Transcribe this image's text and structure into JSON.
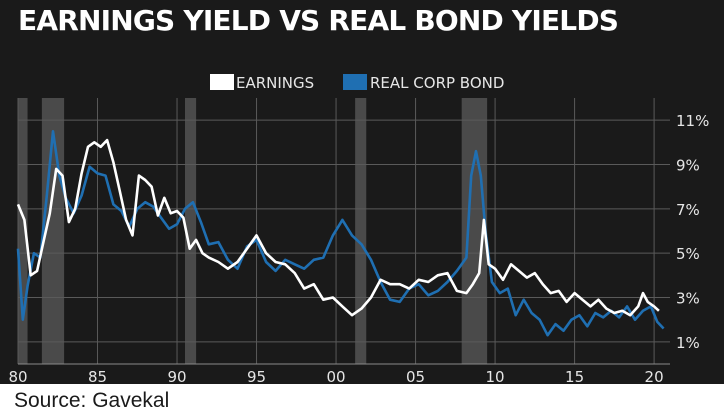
{
  "source": "Source: Gavekal",
  "chart_data": {
    "type": "line",
    "title": "EARNINGS YIELD VS REAL BOND YIELDS",
    "xlabel": "",
    "ylabel": "",
    "xlim": [
      1980,
      2021
    ],
    "ylim": [
      0,
      12
    ],
    "x_ticks": [
      {
        "value": 1980,
        "label": "80"
      },
      {
        "value": 1985,
        "label": "85"
      },
      {
        "value": 1990,
        "label": "90"
      },
      {
        "value": 1995,
        "label": "95"
      },
      {
        "value": 2000,
        "label": "00"
      },
      {
        "value": 2005,
        "label": "05"
      },
      {
        "value": 2010,
        "label": "10"
      },
      {
        "value": 2015,
        "label": "15"
      },
      {
        "value": 2020,
        "label": "20"
      }
    ],
    "y_ticks": [
      {
        "value": 1,
        "label": "1%"
      },
      {
        "value": 3,
        "label": "3%"
      },
      {
        "value": 5,
        "label": "5%"
      },
      {
        "value": 7,
        "label": "7%"
      },
      {
        "value": 9,
        "label": "9%"
      },
      {
        "value": 11,
        "label": "11%"
      }
    ],
    "grid": true,
    "legend_position": "top-center",
    "recession_shading": [
      [
        1980.0,
        1980.6
      ],
      [
        1981.5,
        1982.9
      ],
      [
        1990.5,
        1991.2
      ],
      [
        2001.2,
        2001.9
      ],
      [
        2007.9,
        2009.5
      ]
    ],
    "colors": {
      "background": "#1a1a1a",
      "shading": "#4a4a4a",
      "grid": "#5a5a5a",
      "earnings": "#ffffff",
      "real_corp_bond": "#1f6fb2"
    },
    "series": [
      {
        "name": "EARNINGS",
        "x": [
          1980,
          1980.4,
          1980.8,
          1981.2,
          1981.6,
          1982.0,
          1982.4,
          1982.8,
          1983.2,
          1983.6,
          1984.0,
          1984.4,
          1984.8,
          1985.2,
          1985.6,
          1986.0,
          1986.4,
          1986.8,
          1987.2,
          1987.6,
          1988.0,
          1988.4,
          1988.8,
          1989.2,
          1989.6,
          1990.0,
          1990.4,
          1990.8,
          1991.2,
          1991.6,
          1992.0,
          1992.6,
          1993.2,
          1993.8,
          1994.4,
          1995.0,
          1995.6,
          1996.2,
          1996.8,
          1997.4,
          1998.0,
          1998.6,
          1999.2,
          1999.8,
          2000.4,
          2001.0,
          2001.6,
          2002.2,
          2002.8,
          2003.4,
          2004.0,
          2004.6,
          2005.2,
          2005.8,
          2006.4,
          2007.0,
          2007.6,
          2008.2,
          2008.6,
          2009.0,
          2009.3,
          2009.6,
          2010.0,
          2010.5,
          2011.0,
          2011.5,
          2012.0,
          2012.5,
          2013.0,
          2013.5,
          2014.0,
          2014.5,
          2015.0,
          2015.5,
          2016.0,
          2016.5,
          2017.0,
          2017.5,
          2018.0,
          2018.5,
          2019.0,
          2019.3,
          2019.6,
          2020.0,
          2020.3
        ],
        "values": [
          7.2,
          6.5,
          4.0,
          4.2,
          5.5,
          6.8,
          8.8,
          8.5,
          6.4,
          7.0,
          8.6,
          9.8,
          10.0,
          9.8,
          10.1,
          9.1,
          7.8,
          6.5,
          5.8,
          8.5,
          8.3,
          8.0,
          6.7,
          7.5,
          6.8,
          6.9,
          6.6,
          5.2,
          5.6,
          5.0,
          4.8,
          4.6,
          4.3,
          4.6,
          5.2,
          5.8,
          5.0,
          4.6,
          4.5,
          4.1,
          3.4,
          3.6,
          2.9,
          3.0,
          2.6,
          2.2,
          2.5,
          3.0,
          3.8,
          3.6,
          3.6,
          3.4,
          3.8,
          3.7,
          4.0,
          4.1,
          3.3,
          3.2,
          3.6,
          4.1,
          6.5,
          4.5,
          4.3,
          3.8,
          4.5,
          4.2,
          3.9,
          4.1,
          3.6,
          3.2,
          3.3,
          2.8,
          3.2,
          2.9,
          2.6,
          2.9,
          2.5,
          2.3,
          2.4,
          2.2,
          2.6,
          3.2,
          2.8,
          2.6,
          2.4
        ]
      },
      {
        "name": "REAL CORP BOND",
        "x": [
          1980,
          1980.3,
          1980.6,
          1981.0,
          1981.4,
          1981.8,
          1982.2,
          1982.6,
          1983.0,
          1983.5,
          1984.0,
          1984.5,
          1985.0,
          1985.5,
          1986.0,
          1986.5,
          1987.0,
          1987.5,
          1988.0,
          1988.5,
          1989.0,
          1989.5,
          1990.0,
          1990.5,
          1991.0,
          1991.5,
          1992.0,
          1992.6,
          1993.2,
          1993.8,
          1994.4,
          1995.0,
          1995.6,
          1996.2,
          1996.8,
          1997.4,
          1998.0,
          1998.6,
          1999.2,
          1999.8,
          2000.4,
          2001.0,
          2001.6,
          2002.2,
          2002.8,
          2003.4,
          2004.0,
          2004.6,
          2005.2,
          2005.8,
          2006.4,
          2007.0,
          2007.6,
          2008.2,
          2008.5,
          2008.8,
          2009.1,
          2009.4,
          2009.8,
          2010.3,
          2010.8,
          2011.3,
          2011.8,
          2012.3,
          2012.8,
          2013.3,
          2013.8,
          2014.3,
          2014.8,
          2015.3,
          2015.8,
          2016.3,
          2016.8,
          2017.3,
          2017.8,
          2018.3,
          2018.8,
          2019.3,
          2019.8,
          2020.2,
          2020.6
        ],
        "values": [
          5.2,
          2.0,
          3.5,
          5.0,
          4.8,
          7.5,
          10.5,
          8.5,
          7.5,
          6.8,
          7.6,
          8.9,
          8.6,
          8.5,
          7.2,
          6.9,
          6.2,
          7.0,
          7.3,
          7.1,
          6.6,
          6.1,
          6.3,
          7.0,
          7.3,
          6.4,
          5.4,
          5.5,
          4.7,
          4.3,
          5.3,
          5.6,
          4.6,
          4.2,
          4.7,
          4.5,
          4.3,
          4.7,
          4.8,
          5.8,
          6.5,
          5.8,
          5.4,
          4.7,
          3.7,
          2.9,
          2.8,
          3.4,
          3.6,
          3.1,
          3.3,
          3.7,
          4.2,
          4.8,
          8.5,
          9.6,
          8.5,
          6.0,
          3.7,
          3.2,
          3.4,
          2.2,
          2.9,
          2.3,
          2.0,
          1.3,
          1.8,
          1.5,
          2.0,
          2.2,
          1.7,
          2.3,
          2.1,
          2.4,
          2.1,
          2.6,
          2.0,
          2.4,
          2.6,
          1.9,
          1.6
        ]
      }
    ]
  }
}
